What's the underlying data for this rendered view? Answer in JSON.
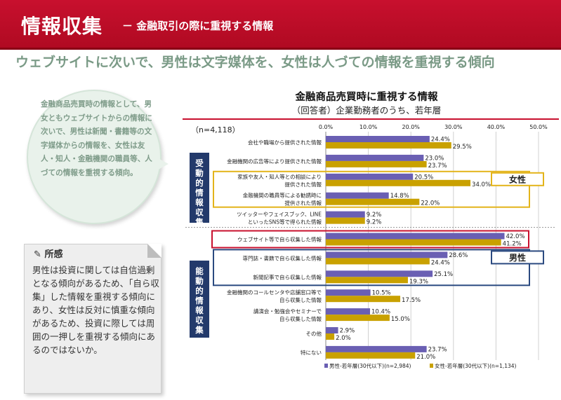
{
  "header": {
    "title": "情報収集",
    "subtitle": "－ 金融取引の際に重視する情報"
  },
  "headline": "ウェブサイトに次いで、男性は文字媒体を、女性は人づての情報を重視する傾向",
  "bubble": {
    "text": "金融商品売買時の情報として、男女ともウェブサイトからの情報に次いで、男性は新聞・書籍等の文字媒体からの情報を、女性は友人・知人・金融機関の職員等、人づての情報を重視する傾向。"
  },
  "opinion": {
    "title": "所感",
    "text": "男性は投資に関しては自信過剰となる傾向があるため、「自ら収集」した情報を重視する傾向にあり、女性は反対に慎重な傾向があるため、投資に際しては周囲の一押しを重視する傾向にあるのではないか。"
  },
  "chart_data": {
    "type": "bar",
    "orientation": "horizontal",
    "title": "金融商品売買時に重視する情報",
    "subtitle": "（回答者）企業勤務者のうち、若年層",
    "n_label": "（n=4,118）",
    "xlim": [
      0,
      50
    ],
    "ticks": [
      0,
      10,
      20,
      30,
      40,
      50
    ],
    "tick_labels": [
      "0.0%",
      "10.0%",
      "20.0%",
      "30.0%",
      "40.0%",
      "50.0%"
    ],
    "categories": [
      [
        "会社や職場から提供された情報"
      ],
      [
        "金融機関の広告等により提供された情報"
      ],
      [
        "家族や友人・知人等との相談により",
        "提供された情報"
      ],
      [
        "金融機関の職員等による勧誘時に",
        "提供された情報"
      ],
      [
        "ツイッターやフェイスブック、LINE",
        "といったSNS等で得られた情報"
      ],
      [
        "ウェブサイト等で自ら収集した情報"
      ],
      [
        "専門誌・書籍で自ら収集した情報"
      ],
      [
        "新聞記事で自ら収集した情報"
      ],
      [
        "金融機関のコールセンタや店舗窓口等で",
        "自ら収集した情報"
      ],
      [
        "講演会・勉強会やセミナーで",
        "自ら収集した情報"
      ],
      [
        "その他"
      ],
      [
        "特にない"
      ]
    ],
    "series": [
      {
        "name": "男性-若年層(30代以下)(n=2,984)",
        "color": "#6a5fb3",
        "values": [
          24.4,
          23.0,
          20.5,
          14.8,
          9.2,
          42.0,
          28.6,
          25.1,
          10.5,
          10.4,
          2.9,
          23.7
        ]
      },
      {
        "name": "女性-若年層(30代以下)(n=1,134)",
        "color": "#c9a100",
        "values": [
          29.5,
          23.7,
          34.0,
          22.0,
          9.2,
          41.2,
          24.4,
          19.3,
          17.5,
          15.0,
          2.0,
          21.0
        ]
      }
    ],
    "value_labels": {
      "male": [
        "24.4%",
        "23.0%",
        "20.5%",
        "14.8%",
        "9.2%",
        "42.0%",
        "28.6%",
        "25.1%",
        "10.5%",
        "10.4%",
        "2.9%",
        "23.7%"
      ],
      "female": [
        "29.5%",
        "23.7%",
        "34.0%",
        "22.0%",
        "9.2%",
        "41.2%",
        "24.4%",
        "19.3%",
        "17.5%",
        "15.0%",
        "2.0%",
        "21.0%"
      ]
    },
    "groups": [
      {
        "label": "受動的情報収集",
        "rows": [
          0,
          4
        ]
      },
      {
        "label": "能動的情報収集",
        "rows": [
          5,
          11
        ]
      }
    ],
    "callouts": [
      {
        "label": "女性",
        "rows": [
          2,
          3
        ],
        "color": "#e3b41a"
      },
      {
        "label": "男性",
        "rows": [
          6,
          7
        ],
        "color": "#2b4a80"
      },
      {
        "label": "",
        "rows": [
          5,
          5
        ],
        "color": "#c8102e"
      }
    ]
  }
}
